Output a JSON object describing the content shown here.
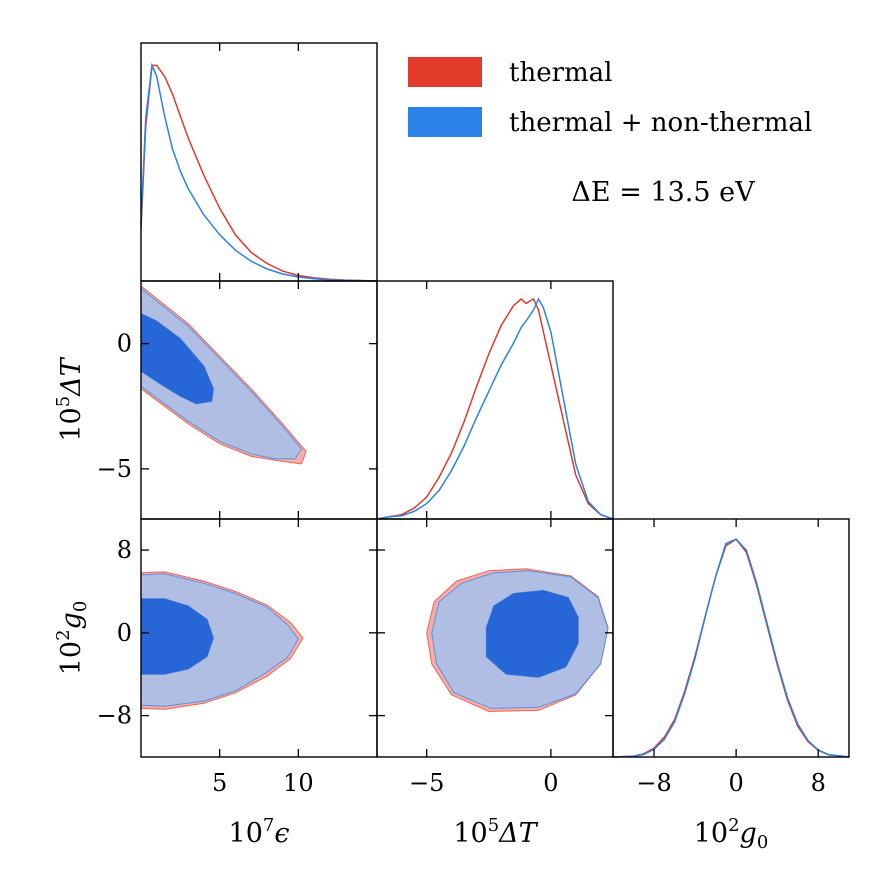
{
  "chart_data": {
    "type": "corner",
    "annotation": "ΔE = 13.5 eV",
    "legend": {
      "placement": "top-right",
      "entries": [
        {
          "label": "thermal",
          "color": "#e03a2a"
        },
        {
          "label": "thermal + non-thermal",
          "color": "#2a82e8"
        }
      ]
    },
    "colors": {
      "thermal_line": "#e03a2a",
      "thermal_fill": "#f4a09a",
      "nonthermal_line": "#2a82e8",
      "nonthermal_fill_outer": "#a9c0ea",
      "nonthermal_fill_inner": "#2766d6"
    },
    "parameters": [
      {
        "name": "epsilon",
        "label_prefix": "10",
        "label_exp": "7",
        "label_sym": "ϵ",
        "range": [
          0,
          15
        ],
        "ticks": [
          5,
          10
        ],
        "tick_labels": [
          "5",
          "10"
        ]
      },
      {
        "name": "deltaT",
        "label_prefix": "10",
        "label_exp": "5",
        "label_sym": "ΔT",
        "range": [
          -7,
          2.5
        ],
        "ticks": [
          -5,
          0
        ],
        "tick_labels": [
          "−5",
          "0"
        ]
      },
      {
        "name": "g0",
        "label_prefix": "10",
        "label_exp": "2",
        "label_sym": "g",
        "label_sub": "0",
        "range": [
          -12,
          11
        ],
        "ticks": [
          -8,
          0,
          8
        ],
        "tick_labels": [
          "−8",
          "0",
          "8"
        ]
      }
    ],
    "marginals": {
      "epsilon": {
        "thermal": {
          "x": [
            0,
            0.3,
            0.7,
            1.0,
            1.5,
            2.0,
            2.5,
            3.0,
            4.0,
            5.0,
            6.0,
            7.0,
            8.0,
            9.0,
            10.0,
            11.0,
            12.0,
            13.0,
            15.0
          ],
          "y": [
            0.24,
            0.7,
            0.98,
            0.98,
            0.93,
            0.85,
            0.75,
            0.65,
            0.48,
            0.33,
            0.21,
            0.13,
            0.08,
            0.045,
            0.025,
            0.014,
            0.008,
            0.004,
            0.0
          ]
        },
        "thermal_plus_nonthermal": {
          "x": [
            0,
            0.3,
            0.7,
            1.0,
            1.5,
            2.0,
            2.5,
            3.0,
            4.0,
            5.0,
            6.0,
            7.0,
            8.0,
            9.0,
            10.0,
            11.0,
            12.0,
            13.0,
            15.0
          ],
          "y": [
            0.26,
            0.74,
            0.98,
            0.93,
            0.75,
            0.6,
            0.5,
            0.42,
            0.3,
            0.21,
            0.14,
            0.09,
            0.055,
            0.032,
            0.018,
            0.01,
            0.005,
            0.003,
            0.0
          ]
        }
      },
      "deltaT": {
        "thermal": {
          "x": [
            -7,
            -6.5,
            -6,
            -5.5,
            -5,
            -4.5,
            -4,
            -3.5,
            -3,
            -2.5,
            -2,
            -1.5,
            -1.2,
            -1.0,
            -0.7,
            -0.5,
            -0.3,
            0,
            0.5,
            1.0,
            1.5,
            2.0,
            2.5
          ],
          "y": [
            0.0,
            0.01,
            0.02,
            0.05,
            0.1,
            0.19,
            0.3,
            0.44,
            0.6,
            0.75,
            0.88,
            0.97,
            1.0,
            0.98,
            1.0,
            0.95,
            0.85,
            0.7,
            0.45,
            0.2,
            0.07,
            0.02,
            0.0
          ]
        },
        "thermal_plus_nonthermal": {
          "x": [
            -7,
            -6.5,
            -6,
            -5.5,
            -5,
            -4.5,
            -4,
            -3.5,
            -3,
            -2.5,
            -2,
            -1.5,
            -1.2,
            -1.0,
            -0.7,
            -0.5,
            -0.3,
            0,
            0.5,
            1.0,
            1.5,
            2.0,
            2.5
          ],
          "y": [
            0.0,
            0.01,
            0.015,
            0.035,
            0.07,
            0.13,
            0.22,
            0.33,
            0.46,
            0.58,
            0.7,
            0.8,
            0.87,
            0.9,
            0.95,
            1.0,
            0.96,
            0.85,
            0.55,
            0.25,
            0.08,
            0.02,
            0.0
          ]
        }
      },
      "g0": {
        "thermal": {
          "x": [
            -12,
            -10,
            -9,
            -8,
            -7,
            -6,
            -5,
            -4,
            -3,
            -2,
            -1,
            0,
            1,
            2,
            3,
            4,
            5,
            6,
            7,
            8,
            9,
            11
          ],
          "y": [
            0.0,
            0.003,
            0.015,
            0.04,
            0.09,
            0.17,
            0.3,
            0.46,
            0.64,
            0.82,
            0.96,
            0.99,
            0.93,
            0.78,
            0.6,
            0.42,
            0.26,
            0.14,
            0.07,
            0.03,
            0.01,
            0.0
          ]
        },
        "thermal_plus_nonthermal": {
          "x": [
            -12,
            -10,
            -9,
            -8,
            -7,
            -6,
            -5,
            -4,
            -3,
            -2,
            -1,
            0,
            1,
            2,
            3,
            4,
            5,
            6,
            7,
            8,
            9,
            11
          ],
          "y": [
            0.0,
            0.003,
            0.012,
            0.035,
            0.08,
            0.16,
            0.29,
            0.45,
            0.64,
            0.82,
            0.97,
            0.99,
            0.94,
            0.79,
            0.61,
            0.43,
            0.27,
            0.15,
            0.075,
            0.032,
            0.011,
            0.0
          ]
        }
      }
    },
    "contours": {
      "deltaT_vs_epsilon": {
        "thermal_95": [
          [
            0,
            2.3
          ],
          [
            1,
            1.8
          ],
          [
            3,
            0.8
          ],
          [
            5,
            -0.5
          ],
          [
            7,
            -1.8
          ],
          [
            9,
            -3.2
          ],
          [
            10.5,
            -4.3
          ],
          [
            10.2,
            -4.8
          ],
          [
            9,
            -4.7
          ],
          [
            7,
            -4.5
          ],
          [
            5,
            -4.0
          ],
          [
            3,
            -3.2
          ],
          [
            1.5,
            -2.5
          ],
          [
            0,
            -1.8
          ]
        ],
        "nonthermal_95": [
          [
            0,
            2.2
          ],
          [
            1,
            1.7
          ],
          [
            3,
            0.7
          ],
          [
            5,
            -0.6
          ],
          [
            7,
            -1.9
          ],
          [
            9,
            -3.3
          ],
          [
            10.2,
            -4.2
          ],
          [
            9.8,
            -4.6
          ],
          [
            8.5,
            -4.6
          ],
          [
            7,
            -4.4
          ],
          [
            5,
            -3.9
          ],
          [
            3,
            -3.1
          ],
          [
            1.5,
            -2.4
          ],
          [
            0,
            -1.7
          ]
        ],
        "nonthermal_68": [
          [
            0,
            1.2
          ],
          [
            1,
            0.9
          ],
          [
            2.5,
            0.2
          ],
          [
            4,
            -0.9
          ],
          [
            4.6,
            -1.8
          ],
          [
            4.5,
            -2.3
          ],
          [
            3.5,
            -2.4
          ],
          [
            2.5,
            -2.1
          ],
          [
            1.2,
            -1.6
          ],
          [
            0,
            -1.1
          ]
        ]
      },
      "g0_vs_epsilon": {
        "thermal_95": [
          [
            0,
            5.8
          ],
          [
            1.5,
            5.9
          ],
          [
            4,
            5.0
          ],
          [
            6,
            4.0
          ],
          [
            8,
            2.7
          ],
          [
            9.5,
            1.0
          ],
          [
            10.3,
            -0.5
          ],
          [
            9.5,
            -2.5
          ],
          [
            8,
            -4.2
          ],
          [
            6,
            -5.8
          ],
          [
            4,
            -6.8
          ],
          [
            1.5,
            -7.4
          ],
          [
            0,
            -7.3
          ]
        ],
        "nonthermal_95": [
          [
            0,
            5.6
          ],
          [
            1.5,
            5.7
          ],
          [
            4,
            4.8
          ],
          [
            6,
            3.8
          ],
          [
            8,
            2.5
          ],
          [
            9.3,
            0.8
          ],
          [
            10,
            -0.6
          ],
          [
            9.3,
            -2.4
          ],
          [
            7.8,
            -4.0
          ],
          [
            6,
            -5.6
          ],
          [
            4,
            -6.6
          ],
          [
            1.5,
            -7.1
          ],
          [
            0,
            -7.0
          ]
        ],
        "nonthermal_68": [
          [
            0,
            3.3
          ],
          [
            1.5,
            3.3
          ],
          [
            3,
            2.6
          ],
          [
            4.2,
            1.3
          ],
          [
            4.6,
            -0.5
          ],
          [
            4.2,
            -2.3
          ],
          [
            3,
            -3.5
          ],
          [
            1.5,
            -4.0
          ],
          [
            0,
            -4.0
          ]
        ]
      },
      "g0_vs_deltaT": {
        "thermal_95": [
          [
            -5.0,
            0.0
          ],
          [
            -4.7,
            3.0
          ],
          [
            -3.8,
            5.0
          ],
          [
            -2.5,
            6.0
          ],
          [
            -1.0,
            6.2
          ],
          [
            0.8,
            5.5
          ],
          [
            1.9,
            3.5
          ],
          [
            2.3,
            0.5
          ],
          [
            2.0,
            -3.0
          ],
          [
            1.0,
            -6.0
          ],
          [
            -0.5,
            -7.5
          ],
          [
            -2.5,
            -7.6
          ],
          [
            -4.0,
            -6.0
          ],
          [
            -4.8,
            -3.0
          ]
        ],
        "nonthermal_95": [
          [
            -4.8,
            0.0
          ],
          [
            -4.5,
            3.0
          ],
          [
            -3.6,
            4.8
          ],
          [
            -2.3,
            5.8
          ],
          [
            -0.9,
            6.0
          ],
          [
            0.8,
            5.4
          ],
          [
            1.9,
            3.4
          ],
          [
            2.3,
            0.4
          ],
          [
            2.0,
            -3.0
          ],
          [
            1.0,
            -5.9
          ],
          [
            -0.5,
            -7.2
          ],
          [
            -2.4,
            -7.3
          ],
          [
            -3.9,
            -5.8
          ],
          [
            -4.6,
            -3.0
          ]
        ],
        "nonthermal_68": [
          [
            -2.6,
            0.5
          ],
          [
            -2.3,
            2.6
          ],
          [
            -1.5,
            3.8
          ],
          [
            -0.3,
            4.1
          ],
          [
            0.7,
            3.4
          ],
          [
            1.1,
            1.5
          ],
          [
            1.1,
            -1.0
          ],
          [
            0.6,
            -3.3
          ],
          [
            -0.5,
            -4.3
          ],
          [
            -1.8,
            -4.0
          ],
          [
            -2.6,
            -2.3
          ]
        ]
      }
    }
  }
}
